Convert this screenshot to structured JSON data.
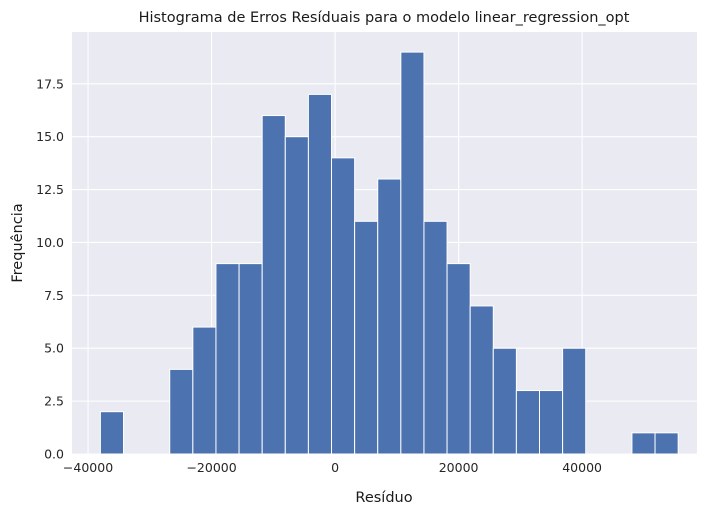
{
  "chart_data": {
    "type": "bar",
    "title": "Histograma de Erros Resíduais para o modelo linear_regression_opt",
    "xlabel": "Resíduo",
    "ylabel": "Frequência",
    "bin_width": 3742,
    "bins": [
      {
        "x0": -38000,
        "count": 2
      },
      {
        "x0": -34258,
        "count": 0
      },
      {
        "x0": -30516,
        "count": 0
      },
      {
        "x0": -26774,
        "count": 4
      },
      {
        "x0": -23032,
        "count": 6
      },
      {
        "x0": -19290,
        "count": 9
      },
      {
        "x0": -15548,
        "count": 9
      },
      {
        "x0": -11806,
        "count": 16
      },
      {
        "x0": -8064,
        "count": 15
      },
      {
        "x0": -4322,
        "count": 17
      },
      {
        "x0": -580,
        "count": 14
      },
      {
        "x0": 3162,
        "count": 11
      },
      {
        "x0": 6904,
        "count": 13
      },
      {
        "x0": 10646,
        "count": 19
      },
      {
        "x0": 14388,
        "count": 11
      },
      {
        "x0": 18130,
        "count": 9
      },
      {
        "x0": 21872,
        "count": 7
      },
      {
        "x0": 25614,
        "count": 5
      },
      {
        "x0": 29356,
        "count": 3
      },
      {
        "x0": 33098,
        "count": 3
      },
      {
        "x0": 36840,
        "count": 5
      },
      {
        "x0": 40582,
        "count": 0
      },
      {
        "x0": 44324,
        "count": 0
      },
      {
        "x0": 48066,
        "count": 1
      },
      {
        "x0": 51808,
        "count": 1
      }
    ],
    "xlim": [
      -42600,
      58600
    ],
    "ylim": [
      0,
      19.95
    ],
    "xticks": [
      -40000,
      -20000,
      0,
      20000,
      40000
    ],
    "xtick_labels": [
      "−40000",
      "−20000",
      "0",
      "20000",
      "40000"
    ],
    "yticks": [
      0,
      2.5,
      5,
      7.5,
      10,
      12.5,
      15,
      17.5
    ],
    "ytick_labels": [
      "0.0",
      "2.5",
      "5.0",
      "7.5",
      "10.0",
      "12.5",
      "15.0",
      "17.5"
    ],
    "grid": true,
    "legend": "none",
    "colors": {
      "bar": "#4c72b0",
      "plot_background": "#eaeaf2",
      "grid": "#ffffff"
    }
  }
}
